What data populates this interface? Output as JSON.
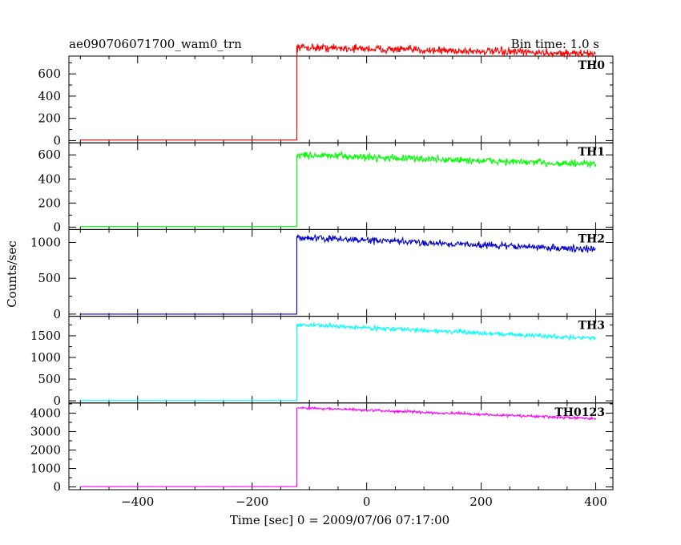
{
  "chart_data": {
    "type": "line",
    "title_left": "ae090706071700_wam0_trn",
    "title_right": "Bin time: 1.0 s",
    "xlabel": "Time [sec] 0 = 2009/07/06 07:17:00",
    "ylabel": "Counts/sec",
    "xlim": [
      -520,
      430
    ],
    "xticks": [
      -400,
      -200,
      0,
      200,
      400
    ],
    "trigger_time": -122,
    "panels": [
      {
        "name": "TH0",
        "color": "#ff0000",
        "ylim": [
          -20,
          760
        ],
        "yticks": [
          0,
          200,
          400,
          600
        ],
        "ytick_labels": [
          "0",
          "200",
          "400",
          "600"
        ],
        "pre_level": 5,
        "post_start_level": 840,
        "post_end_level": 780,
        "noise_amplitude": 35,
        "series": [
          {
            "x": [
              -500,
              -300,
              -130,
              -122
            ],
            "y": [
              5,
              5,
              5,
              5
            ]
          },
          {
            "x": [
              -122,
              0,
              200,
              400
            ],
            "y": [
              840,
              830,
              810,
              780
            ]
          }
        ]
      },
      {
        "name": "TH1",
        "color": "#00ff00",
        "ylim": [
          -20,
          700
        ],
        "yticks": [
          0,
          200,
          400,
          600
        ],
        "ytick_labels": [
          "0",
          "200",
          "400",
          "600"
        ],
        "pre_level": 5,
        "post_start_level": 600,
        "post_end_level": 520,
        "noise_amplitude": 30,
        "series": [
          {
            "x": [
              -500,
              -300,
              -130,
              -122
            ],
            "y": [
              5,
              5,
              5,
              5
            ]
          },
          {
            "x": [
              -122,
              0,
              200,
              400
            ],
            "y": [
              600,
              575,
              545,
              520
            ]
          }
        ]
      },
      {
        "name": "TH2",
        "color": "#0000cc",
        "ylim": [
          -30,
          1180
        ],
        "yticks": [
          0,
          500,
          1000
        ],
        "ytick_labels": [
          "0",
          "500",
          "1000"
        ],
        "pre_level": 0,
        "post_start_level": 1070,
        "post_end_level": 900,
        "noise_amplitude": 45,
        "series": [
          {
            "x": [
              -500,
              -300,
              -130,
              -122
            ],
            "y": [
              0,
              0,
              0,
              0
            ]
          },
          {
            "x": [
              -122,
              0,
              200,
              400
            ],
            "y": [
              1070,
              1010,
              950,
              900
            ]
          }
        ]
      },
      {
        "name": "TH3",
        "color": "#00ffff",
        "ylim": [
          -50,
          1950
        ],
        "yticks": [
          0,
          500,
          1000,
          1500
        ],
        "ytick_labels": [
          "0",
          "500",
          "1000",
          "1500"
        ],
        "pre_level": 5,
        "post_start_level": 1760,
        "post_end_level": 1440,
        "noise_amplitude": 50,
        "series": [
          {
            "x": [
              -500,
              -300,
              -130,
              -122
            ],
            "y": [
              5,
              5,
              5,
              5
            ]
          },
          {
            "x": [
              -122,
              0,
              200,
              400
            ],
            "y": [
              1760,
              1640,
              1540,
              1440
            ]
          }
        ]
      },
      {
        "name": "TH0123",
        "color": "#ff00ff",
        "ylim": [
          -150,
          4550
        ],
        "yticks": [
          0,
          1000,
          2000,
          3000,
          4000
        ],
        "ytick_labels": [
          "0",
          "1000",
          "2000",
          "3000",
          "4000"
        ],
        "pre_level": 15,
        "post_start_level": 4300,
        "post_end_level": 3700,
        "noise_amplitude": 70,
        "series": [
          {
            "x": [
              -500,
              -300,
              -130,
              -122
            ],
            "y": [
              15,
              15,
              15,
              15
            ]
          },
          {
            "x": [
              -122,
              0,
              200,
              400
            ],
            "y": [
              4300,
              4100,
              3900,
              3700
            ]
          }
        ]
      }
    ]
  }
}
